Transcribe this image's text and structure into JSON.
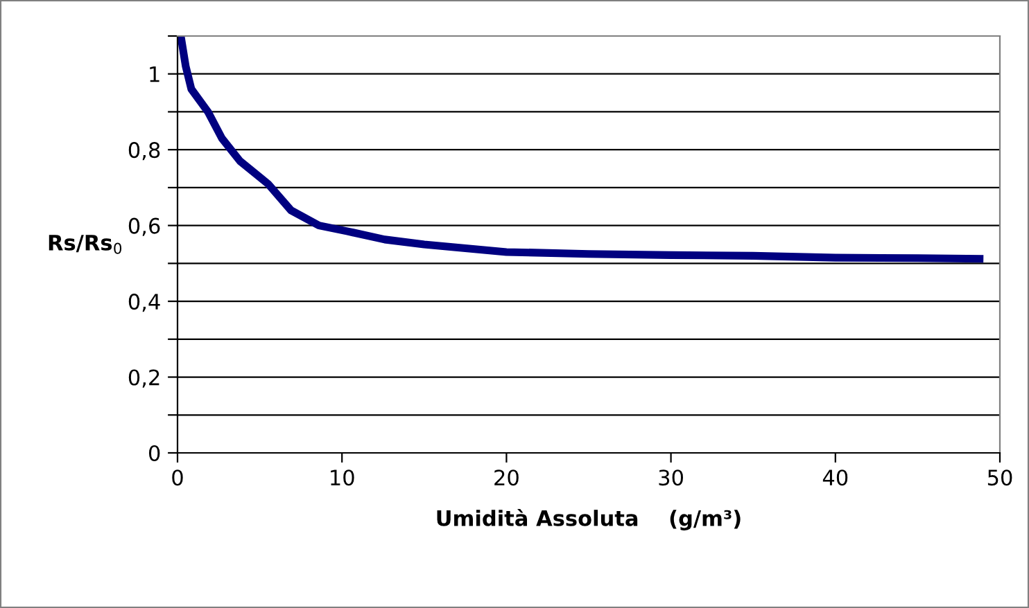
{
  "chart_data": {
    "type": "line",
    "xlabel": "Umidità Assoluta    (g/m³)",
    "ylabel": "Rs/Rs$_{0}$",
    "x": [
      0.2,
      0.5,
      0.84,
      1.85,
      2.7,
      3.8,
      5.5,
      6.9,
      8.6,
      10.3,
      12.6,
      15,
      20,
      25,
      30,
      35,
      40,
      45,
      49
    ],
    "series": [
      {
        "color": "#000080",
        "values": [
          1.1,
          1.02,
          0.96,
          0.9,
          0.83,
          0.77,
          0.71,
          0.64,
          0.6,
          0.585,
          0.563,
          0.55,
          0.53,
          0.525,
          0.522,
          0.52,
          0.515,
          0.514,
          0.512
        ]
      }
    ],
    "xlim": [
      0,
      50
    ],
    "xticks": [
      0,
      10,
      20,
      30,
      40,
      50
    ],
    "ylim": [
      0,
      1.1
    ],
    "yticks": [
      0,
      {
        "value": 0.1,
        "label": null
      },
      {
        "value": 0.2,
        "label": "0,2"
      },
      {
        "value": 0.3,
        "label": null
      },
      {
        "value": 0.4,
        "label": "0,4"
      },
      {
        "value": 0.5,
        "label": null
      },
      {
        "value": 0.6,
        "label": "0,6"
      },
      {
        "value": 0.7,
        "label": null
      },
      {
        "value": 0.8,
        "label": "0,8"
      },
      {
        "value": 0.9,
        "label": null
      },
      1,
      {
        "value": 1.1,
        "label": null
      }
    ],
    "grid": "y",
    "legend": false,
    "marker": "none",
    "line_style": "solid"
  }
}
